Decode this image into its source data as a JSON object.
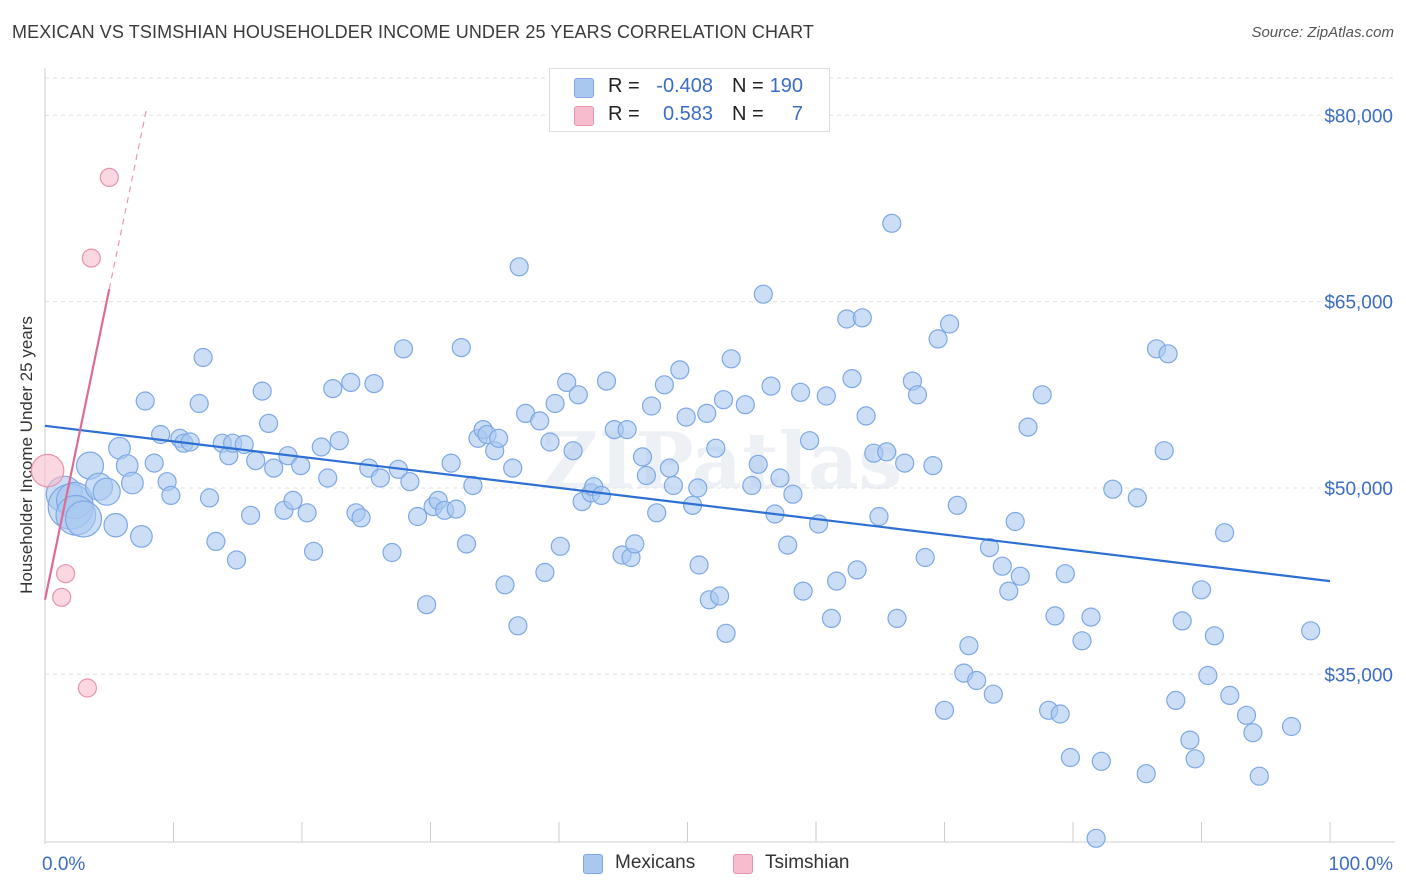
{
  "title": "MEXICAN VS TSIMSHIAN HOUSEHOLDER INCOME UNDER 25 YEARS CORRELATION CHART",
  "source": "Source: ZipAtlas.com",
  "watermark": "ZIPatlas",
  "legend_top": [
    {
      "r_label": "R =",
      "r_value": "-0.408",
      "n_label": "N =",
      "n_value": "190",
      "color": "#a9c8f0"
    },
    {
      "r_label": "R =",
      "r_value": "0.583",
      "n_label": "N =",
      "n_value": "7",
      "color": "#f7bccd"
    }
  ],
  "legend_bottom": [
    {
      "label": "Mexicans",
      "color": "#a9c8f0"
    },
    {
      "label": "Tsimshian",
      "color": "#f7bccd"
    }
  ],
  "chart_data": {
    "type": "scatter",
    "title": "MEXICAN VS TSIMSHIAN HOUSEHOLDER INCOME UNDER 25 YEARS CORRELATION CHART",
    "xlabel": "",
    "ylabel": "Householder Income Under 25 years",
    "xlim": [
      0,
      100
    ],
    "ylim": [
      21500,
      83000
    ],
    "x_tick_labels": [
      {
        "value": 0,
        "label": "0.0%"
      },
      {
        "value": 100,
        "label": "100.0%"
      }
    ],
    "y_ticks": [
      {
        "value": 80000,
        "label": "$80,000"
      },
      {
        "value": 65000,
        "label": "$65,000"
      },
      {
        "value": 50000,
        "label": "$50,000"
      },
      {
        "value": 35000,
        "label": "$35,000"
      }
    ],
    "grid": true,
    "legend_position": "top-center",
    "series": [
      {
        "name": "Mexicans",
        "color": "#7ea8e4",
        "fill": "#a9c8f0",
        "trend": {
          "x0": 0,
          "y0": 55000,
          "x1": 100,
          "y1": 42500,
          "color": "#2d6fd2"
        },
        "points": [
          [
            1.5,
            49500,
            2
          ],
          [
            2.0,
            48500,
            2.5
          ],
          [
            2.3,
            49000,
            2
          ],
          [
            2.4,
            47800,
            2.2
          ],
          [
            3.0,
            47500,
            2
          ],
          [
            3.5,
            51800,
            1.5
          ],
          [
            4.2,
            50100,
            1.5
          ],
          [
            4.8,
            49700,
            1.5
          ],
          [
            5.5,
            47000,
            1.3
          ],
          [
            5.8,
            53200,
            1.2
          ],
          [
            6.4,
            51800,
            1.2
          ],
          [
            6.8,
            50400,
            1.2
          ],
          [
            7.5,
            46100,
            1.2
          ],
          [
            7.8,
            57000,
            1
          ],
          [
            8.5,
            52000,
            1
          ],
          [
            9.0,
            54300,
            1
          ],
          [
            9.5,
            50500,
            1
          ],
          [
            9.8,
            49400,
            1
          ],
          [
            10.5,
            54000,
            1
          ],
          [
            10.8,
            53600,
            1
          ],
          [
            11.3,
            53700,
            1
          ],
          [
            12.0,
            56800,
            1
          ],
          [
            12.3,
            60500,
            1
          ],
          [
            12.8,
            49200,
            1
          ],
          [
            13.3,
            45700,
            1
          ],
          [
            13.8,
            53600,
            1
          ],
          [
            14.3,
            52600,
            1
          ],
          [
            14.6,
            53600,
            1
          ],
          [
            14.9,
            44200,
            1
          ],
          [
            15.5,
            53500,
            1
          ],
          [
            16.0,
            47800,
            1
          ],
          [
            16.4,
            52200,
            1
          ],
          [
            16.9,
            57800,
            1
          ],
          [
            17.4,
            55200,
            1
          ],
          [
            17.8,
            51600,
            1
          ],
          [
            18.6,
            48200,
            1
          ],
          [
            18.9,
            52600,
            1
          ],
          [
            19.3,
            49000,
            1
          ],
          [
            19.9,
            51800,
            1
          ],
          [
            20.4,
            48000,
            1
          ],
          [
            20.9,
            44900,
            1
          ],
          [
            21.5,
            53300,
            1
          ],
          [
            22.0,
            50800,
            1
          ],
          [
            22.4,
            58000,
            1
          ],
          [
            22.9,
            53800,
            1
          ],
          [
            23.8,
            58500,
            1
          ],
          [
            24.2,
            48000,
            1
          ],
          [
            24.6,
            47600,
            1
          ],
          [
            25.2,
            51600,
            1
          ],
          [
            25.6,
            58400,
            1
          ],
          [
            26.1,
            50800,
            1
          ],
          [
            27.0,
            44800,
            1
          ],
          [
            27.5,
            51500,
            1
          ],
          [
            27.9,
            61200,
            1
          ],
          [
            28.4,
            50500,
            1
          ],
          [
            29.0,
            47700,
            1
          ],
          [
            29.7,
            40600,
            1
          ],
          [
            30.2,
            48500,
            1
          ],
          [
            30.6,
            49000,
            1
          ],
          [
            31.1,
            48200,
            1
          ],
          [
            31.6,
            52000,
            1
          ],
          [
            32.0,
            48300,
            1
          ],
          [
            32.4,
            61300,
            1
          ],
          [
            32.8,
            45500,
            1
          ],
          [
            33.3,
            50200,
            1
          ],
          [
            33.7,
            54000,
            1
          ],
          [
            34.1,
            54700,
            1
          ],
          [
            34.4,
            54300,
            1
          ],
          [
            35.0,
            53000,
            1
          ],
          [
            35.3,
            54000,
            1
          ],
          [
            35.8,
            42200,
            1
          ],
          [
            36.4,
            51600,
            1
          ],
          [
            36.8,
            38900,
            1
          ],
          [
            36.9,
            67800,
            1
          ],
          [
            37.4,
            56000,
            1
          ],
          [
            38.5,
            55400,
            1
          ],
          [
            38.9,
            43200,
            1
          ],
          [
            39.3,
            53700,
            1
          ],
          [
            39.7,
            56800,
            1
          ],
          [
            40.1,
            45300,
            1
          ],
          [
            40.6,
            58500,
            1
          ],
          [
            41.1,
            53000,
            1
          ],
          [
            41.5,
            57500,
            1
          ],
          [
            41.8,
            48900,
            1
          ],
          [
            42.5,
            49600,
            1
          ],
          [
            42.7,
            50100,
            1
          ],
          [
            43.3,
            49400,
            1
          ],
          [
            43.7,
            58600,
            1
          ],
          [
            44.3,
            54700,
            1
          ],
          [
            44.9,
            44600,
            1
          ],
          [
            45.3,
            54700,
            1
          ],
          [
            45.6,
            44400,
            1
          ],
          [
            45.9,
            45500,
            1
          ],
          [
            46.5,
            52500,
            1
          ],
          [
            46.8,
            51000,
            1
          ],
          [
            47.2,
            56600,
            1
          ],
          [
            47.6,
            48000,
            1
          ],
          [
            48.2,
            58300,
            1
          ],
          [
            48.6,
            51600,
            1
          ],
          [
            48.9,
            50200,
            1
          ],
          [
            49.4,
            59500,
            1
          ],
          [
            49.9,
            55700,
            1
          ],
          [
            50.4,
            48600,
            1
          ],
          [
            50.8,
            50000,
            1
          ],
          [
            50.9,
            43800,
            1
          ],
          [
            51.5,
            56000,
            1
          ],
          [
            51.7,
            41000,
            1
          ],
          [
            52.2,
            53200,
            1
          ],
          [
            52.5,
            41300,
            1
          ],
          [
            52.8,
            57100,
            1
          ],
          [
            53.0,
            38300,
            1
          ],
          [
            53.4,
            60400,
            1
          ],
          [
            54.5,
            56700,
            1
          ],
          [
            55.0,
            50200,
            1
          ],
          [
            55.5,
            51900,
            1
          ],
          [
            55.9,
            65600,
            1
          ],
          [
            56.5,
            58200,
            1
          ],
          [
            56.8,
            47900,
            1
          ],
          [
            57.2,
            50800,
            1
          ],
          [
            57.8,
            45400,
            1
          ],
          [
            58.2,
            49500,
            1
          ],
          [
            58.8,
            57700,
            1
          ],
          [
            59.0,
            41700,
            1
          ],
          [
            59.5,
            53800,
            1
          ],
          [
            60.2,
            47100,
            1
          ],
          [
            60.8,
            57400,
            1
          ],
          [
            61.2,
            39500,
            1
          ],
          [
            61.6,
            42500,
            1
          ],
          [
            62.4,
            63600,
            1
          ],
          [
            62.8,
            58800,
            1
          ],
          [
            63.2,
            43400,
            1
          ],
          [
            63.6,
            63700,
            1
          ],
          [
            63.9,
            55800,
            1
          ],
          [
            64.5,
            52800,
            1
          ],
          [
            64.9,
            47700,
            1
          ],
          [
            65.5,
            52900,
            1
          ],
          [
            65.9,
            71300,
            1
          ],
          [
            66.3,
            39500,
            1
          ],
          [
            66.9,
            52000,
            1
          ],
          [
            67.5,
            58600,
            1
          ],
          [
            67.9,
            57500,
            1
          ],
          [
            68.5,
            44400,
            1
          ],
          [
            69.1,
            51800,
            1
          ],
          [
            69.5,
            62000,
            1
          ],
          [
            70.0,
            32100,
            1
          ],
          [
            70.4,
            63200,
            1
          ],
          [
            71.0,
            48600,
            1
          ],
          [
            71.5,
            35100,
            1
          ],
          [
            71.9,
            37300,
            1
          ],
          [
            72.5,
            34500,
            1
          ],
          [
            73.5,
            45200,
            1
          ],
          [
            73.8,
            33400,
            1
          ],
          [
            74.5,
            43700,
            1
          ],
          [
            75.0,
            41700,
            1
          ],
          [
            75.5,
            47300,
            1
          ],
          [
            75.9,
            42900,
            1
          ],
          [
            76.5,
            54900,
            1
          ],
          [
            77.6,
            57500,
            1
          ],
          [
            78.1,
            32100,
            1
          ],
          [
            78.6,
            39700,
            1
          ],
          [
            79.0,
            31800,
            1
          ],
          [
            79.4,
            43100,
            1
          ],
          [
            79.8,
            28300,
            1
          ],
          [
            80.7,
            37700,
            1
          ],
          [
            81.4,
            39600,
            1
          ],
          [
            81.8,
            21800,
            1
          ],
          [
            82.2,
            28000,
            1
          ],
          [
            83.1,
            49900,
            1
          ],
          [
            85.0,
            49200,
            1
          ],
          [
            85.7,
            27000,
            1
          ],
          [
            86.5,
            61200,
            1
          ],
          [
            87.1,
            53000,
            1
          ],
          [
            87.4,
            60800,
            1
          ],
          [
            88.0,
            32900,
            1
          ],
          [
            88.5,
            39300,
            1
          ],
          [
            89.1,
            29700,
            1
          ],
          [
            89.5,
            28200,
            1
          ],
          [
            90.0,
            41800,
            1
          ],
          [
            90.5,
            34900,
            1
          ],
          [
            91.0,
            38100,
            1
          ],
          [
            91.8,
            46400,
            1
          ],
          [
            92.2,
            33300,
            1
          ],
          [
            93.5,
            31700,
            1
          ],
          [
            94.0,
            30300,
            1
          ],
          [
            94.5,
            26800,
            1
          ],
          [
            97.0,
            30800,
            1
          ],
          [
            98.5,
            38500,
            1
          ]
        ]
      },
      {
        "name": "Tsimshian",
        "color": "#e893ad",
        "fill": "#f7bccd",
        "trend": {
          "x0": 0,
          "y0": 41000,
          "x1": 5,
          "y1": 66000,
          "dash_to_x": 7.9,
          "dash_to_y": 80500,
          "color": "#e06a96"
        },
        "points": [
          [
            0.2,
            51400,
            1.8
          ],
          [
            1.3,
            41200,
            1
          ],
          [
            1.6,
            43100,
            1
          ],
          [
            3.6,
            68500,
            1
          ],
          [
            3.3,
            33900,
            1
          ],
          [
            5.0,
            75000,
            1
          ]
        ]
      }
    ]
  }
}
